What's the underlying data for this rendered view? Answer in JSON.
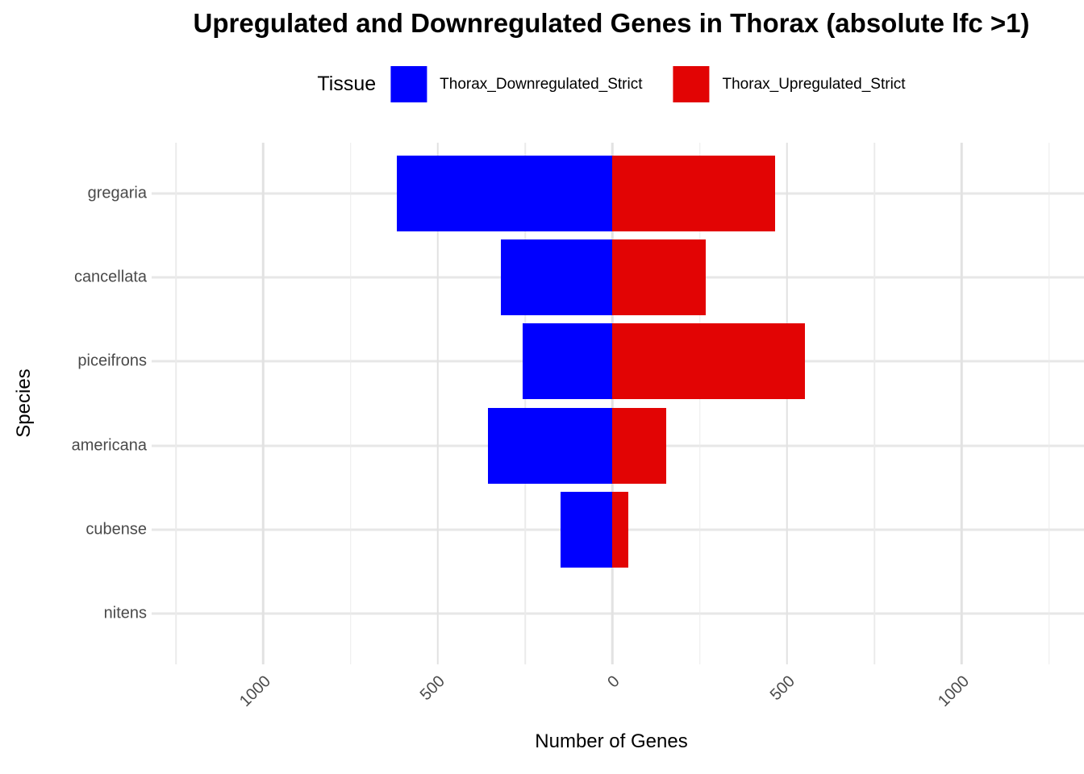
{
  "title": "Upregulated and Downregulated Genes in Thorax (absolute lfc >1)",
  "legend": {
    "title": "Tissue",
    "items": [
      {
        "label": "Thorax_Downregulated_Strict",
        "color": "#0000FF"
      },
      {
        "label": "Thorax_Upregulated_Strict",
        "color": "#E20404"
      }
    ]
  },
  "chart_data": {
    "type": "bar",
    "orientation": "horizontal-diverging",
    "title": "Upregulated and Downregulated Genes in Thorax (absolute lfc >1)",
    "xlabel": "Number of Genes",
    "ylabel": "Species",
    "categories": [
      "gregaria",
      "cancellata",
      "piceifrons",
      "americana",
      "cubense",
      "nitens"
    ],
    "series": [
      {
        "name": "Thorax_Downregulated_Strict",
        "color": "#0000FF",
        "direction": "left",
        "values": [
          618,
          320,
          256,
          357,
          148,
          0
        ]
      },
      {
        "name": "Thorax_Upregulated_Strict",
        "color": "#E20404",
        "direction": "right",
        "values": [
          465,
          267,
          550,
          155,
          45,
          0
        ]
      }
    ],
    "xlim": [
      -1250,
      1350
    ],
    "x_ticks": [
      {
        "value": -1000,
        "label": "1000"
      },
      {
        "value": -500,
        "label": "500"
      },
      {
        "value": 0,
        "label": "0"
      },
      {
        "value": 500,
        "label": "500"
      },
      {
        "value": 1000,
        "label": "1000"
      }
    ],
    "major_gridlines": [
      -1000,
      -500,
      0,
      500,
      1000
    ],
    "minor_gridlines": [
      -1250,
      -750,
      -250,
      250,
      750,
      1250
    ],
    "grid": true,
    "legend_position": "top"
  }
}
